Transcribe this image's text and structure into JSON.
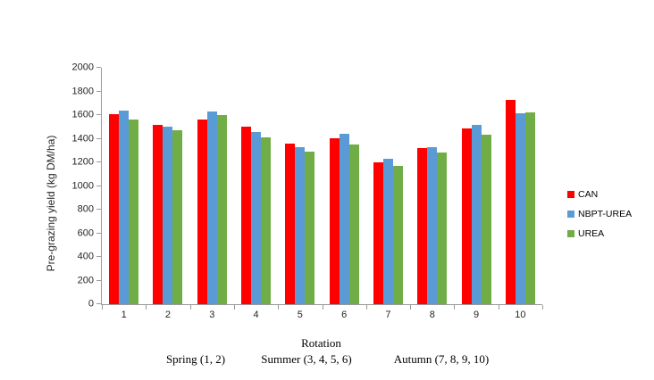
{
  "chart_data": {
    "type": "bar",
    "title": "",
    "xlabel": "Rotation",
    "ylabel": "Pre-grazing yield (kg DM/ha)",
    "ylim": [
      0,
      2000
    ],
    "yticks": [
      0,
      200,
      400,
      600,
      800,
      1000,
      1200,
      1400,
      1600,
      1800,
      2000
    ],
    "grid": false,
    "legend_position": "right",
    "categories": [
      "1",
      "2",
      "3",
      "4",
      "5",
      "6",
      "7",
      "8",
      "9",
      "10"
    ],
    "series": [
      {
        "name": "CAN",
        "color": "#FF0000",
        "values": [
          1605,
          1520,
          1560,
          1505,
          1360,
          1405,
          1200,
          1320,
          1485,
          1730
        ]
      },
      {
        "name": "NBPT-UREA",
        "color": "#5B9BD5",
        "values": [
          1635,
          1505,
          1630,
          1460,
          1330,
          1440,
          1230,
          1325,
          1515,
          1615
        ]
      },
      {
        "name": "UREA",
        "color": "#70AD47",
        "values": [
          1560,
          1470,
          1600,
          1410,
          1290,
          1355,
          1170,
          1285,
          1435,
          1625
        ]
      }
    ],
    "group_annotations": [
      "Spring (1, 2)",
      "Summer (3, 4, 5, 6)",
      "Autumn (7, 8, 9, 10)"
    ]
  },
  "axis": {
    "line_color": "#9A9A9A"
  }
}
